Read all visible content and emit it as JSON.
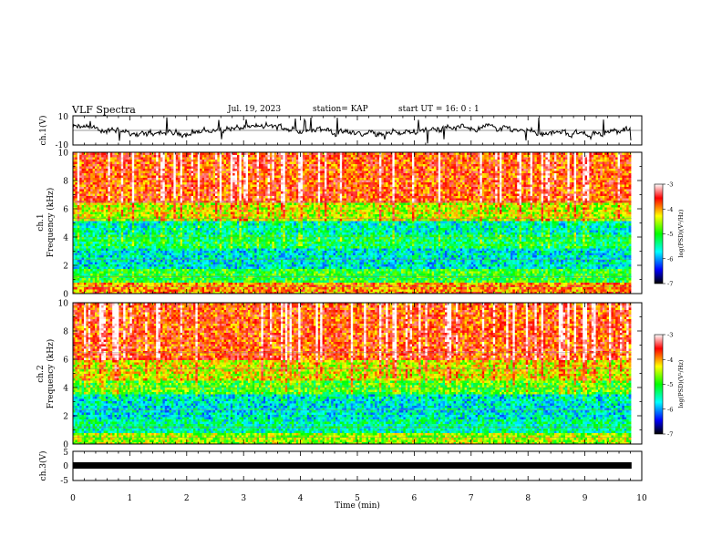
{
  "header": {
    "title": "VLF Spectra",
    "date": "Jul. 19, 2023",
    "station": "station= KAP",
    "start": "start UT =  16: 0 : 1"
  },
  "colors": {
    "palette": [
      "#000000",
      "#0000ff",
      "#00ffff",
      "#00ff00",
      "#ffff00",
      "#ff0000",
      "#ffffff"
    ],
    "trace": "#000000"
  },
  "chart_data": [
    {
      "type": "line",
      "id": "ch1-waveform",
      "ylabel": "ch.1(V)",
      "ylim": [
        -10,
        10
      ],
      "y_tick_labels": [
        "10",
        "-10"
      ],
      "description_values": "waveform fluctuating mostly between about -6 and 6 V"
    },
    {
      "type": "heatmap",
      "id": "ch1-spectrogram",
      "ylabel": "ch.1\nFrequency (kHz)",
      "ylabel_lines": [
        "ch.1",
        "Frequency (kHz)"
      ],
      "ylim": [
        0,
        10
      ],
      "y_tick_labels": [
        "0",
        "2",
        "4",
        "6",
        "8",
        "10"
      ],
      "colorbar": {
        "label": "log(PSD)(V²/Hz)",
        "ticks": [
          "-3",
          "-4",
          "-5",
          "-6",
          "-7"
        ],
        "range": [
          -7,
          -3
        ]
      },
      "bands": [
        {
          "from": 0,
          "to": 0.8,
          "level": -4.0
        },
        {
          "from": 0.8,
          "to": 1.8,
          "level": -5.0
        },
        {
          "from": 1.8,
          "to": 3.2,
          "level": -5.6
        },
        {
          "from": 3.2,
          "to": 4.2,
          "level": -5.2
        },
        {
          "from": 4.2,
          "to": 5.2,
          "level": -5.5
        },
        {
          "from": 5.2,
          "to": 6.5,
          "level": -4.5
        },
        {
          "from": 6.5,
          "to": 10,
          "level": -3.8
        }
      ]
    },
    {
      "type": "heatmap",
      "id": "ch2-spectrogram",
      "ylabel": "ch.2\nFrequency (kHz)",
      "ylabel_lines": [
        "ch.2",
        "Frequency (kHz)"
      ],
      "ylim": [
        0,
        10
      ],
      "y_tick_labels": [
        "0",
        "2",
        "4",
        "6",
        "8",
        "10"
      ],
      "colorbar": {
        "label": "log(PSD)(V²/Hz)",
        "ticks": [
          "-3",
          "-4",
          "-5",
          "-6",
          "-7"
        ],
        "range": [
          -7,
          -3
        ]
      },
      "bands": [
        {
          "from": 0,
          "to": 0.8,
          "level": -4.6
        },
        {
          "from": 0.8,
          "to": 1.8,
          "level": -5.4
        },
        {
          "from": 1.8,
          "to": 3.5,
          "level": -5.6
        },
        {
          "from": 3.5,
          "to": 4.5,
          "level": -4.9
        },
        {
          "from": 4.5,
          "to": 6.0,
          "level": -4.4
        },
        {
          "from": 6.0,
          "to": 10,
          "level": -3.8
        }
      ]
    },
    {
      "type": "line",
      "id": "ch3-waveform",
      "ylabel": "ch.3(V)",
      "ylim": [
        -5,
        5
      ],
      "y_tick_labels": [
        "5",
        "0",
        "-5"
      ],
      "level": 0
    }
  ],
  "time_axis": {
    "xlabel": "Time (min)",
    "xlim": [
      0,
      10
    ],
    "tick_labels": [
      "0",
      "1",
      "2",
      "3",
      "4",
      "5",
      "6",
      "7",
      "8",
      "9",
      "10"
    ],
    "data_end": 9.82
  }
}
